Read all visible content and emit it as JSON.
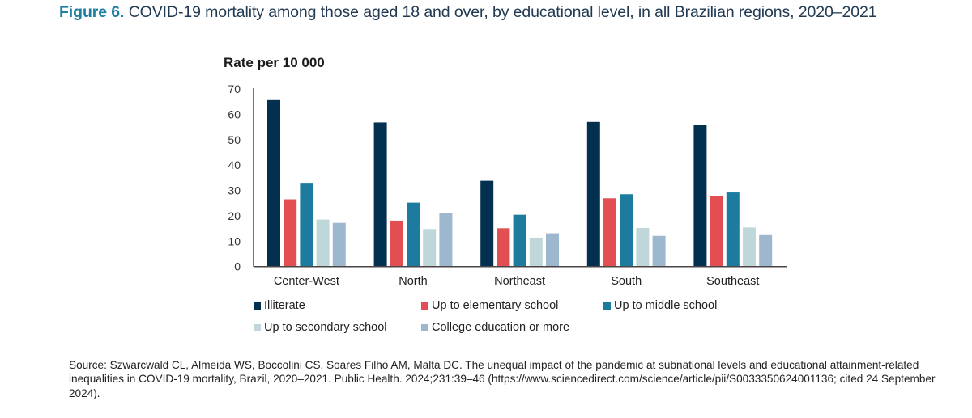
{
  "figure": {
    "number_label": "Figure 6.",
    "title_text": " COVID-19 mortality among those aged 18 and over, by educational level, in all Brazilian regions, 2020–2021",
    "source": "Source: Szwarcwald CL, Almeida WS, Boccolini CS, Soares Filho AM, Malta DC. The unequal impact of the pandemic at subnational levels and educational attainment-related inequalities in COVID-19 mortality, Brazil, 2020–2021. Public Health. 2024;231:39–46 (https://www.sciencedirect.com/science/article/pii/S0033350624001136; cited 24 September 2024)."
  },
  "chart_data": {
    "type": "bar",
    "title": "COVID-19 mortality among those aged 18 and over, by educational level, in all Brazilian regions, 2020–2021",
    "ylabel": "Rate per 10 000",
    "xlabel": "",
    "ylim": [
      0,
      70
    ],
    "yticks": [
      0,
      10,
      20,
      30,
      40,
      50,
      60,
      70
    ],
    "grid": false,
    "legend_position": "bottom",
    "categories": [
      "Center-West",
      "North",
      "Northeast",
      "South",
      "Southeast"
    ],
    "series": [
      {
        "name": "Illiterate",
        "color": "#04304f",
        "values": [
          65.6,
          56.8,
          33.8,
          57.0,
          55.7
        ]
      },
      {
        "name": "Up to elementary school",
        "color": "#e24e52",
        "values": [
          26.5,
          18.1,
          15.1,
          26.9,
          27.9
        ]
      },
      {
        "name": "Up to middle school",
        "color": "#1c7b9e",
        "values": [
          33.0,
          25.2,
          20.4,
          28.5,
          29.2
        ]
      },
      {
        "name": "Up to secondary school",
        "color": "#bfd7d8",
        "values": [
          18.5,
          14.8,
          11.4,
          15.2,
          15.4
        ]
      },
      {
        "name": "College education or more",
        "color": "#9db7cf",
        "values": [
          17.2,
          21.1,
          13.1,
          12.1,
          12.4
        ]
      }
    ]
  }
}
